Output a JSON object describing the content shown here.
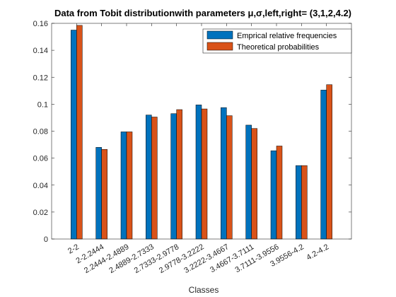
{
  "chart_data": {
    "type": "bar",
    "title": "Data from Tobit distributionwith parameters μ,σ,left,right= (3,1,2,4.2)",
    "xlabel": "Classes",
    "ylabel": "",
    "ylim": [
      0,
      0.16
    ],
    "yticks": [
      "0",
      "0.02",
      "0.04",
      "0.06",
      "0.08",
      "0.1",
      "0.12",
      "0.14",
      "0.16"
    ],
    "categories": [
      "2-2",
      "2-2.2444",
      "2.2444-2.4889",
      "2.4889-2.7333",
      "2.7333-2.9778",
      "2.9778-3.2222",
      "3.2222-3.4667",
      "3.4667-3.7111",
      "3.7111-3.9556",
      "3.9556-4.2",
      "4.2-4.2"
    ],
    "series": [
      {
        "name": "Emprical relative frequencies",
        "color": "#0072BD",
        "values": [
          0.155,
          0.068,
          0.0795,
          0.092,
          0.093,
          0.0995,
          0.0975,
          0.0845,
          0.0655,
          0.0545,
          0.1105
        ]
      },
      {
        "name": "Theoretical probabilities",
        "color": "#D95319",
        "values": [
          0.1585,
          0.0665,
          0.0795,
          0.0905,
          0.096,
          0.0965,
          0.0915,
          0.082,
          0.069,
          0.0545,
          0.1145
        ]
      }
    ],
    "legend": "top-right",
    "grid": false
  }
}
